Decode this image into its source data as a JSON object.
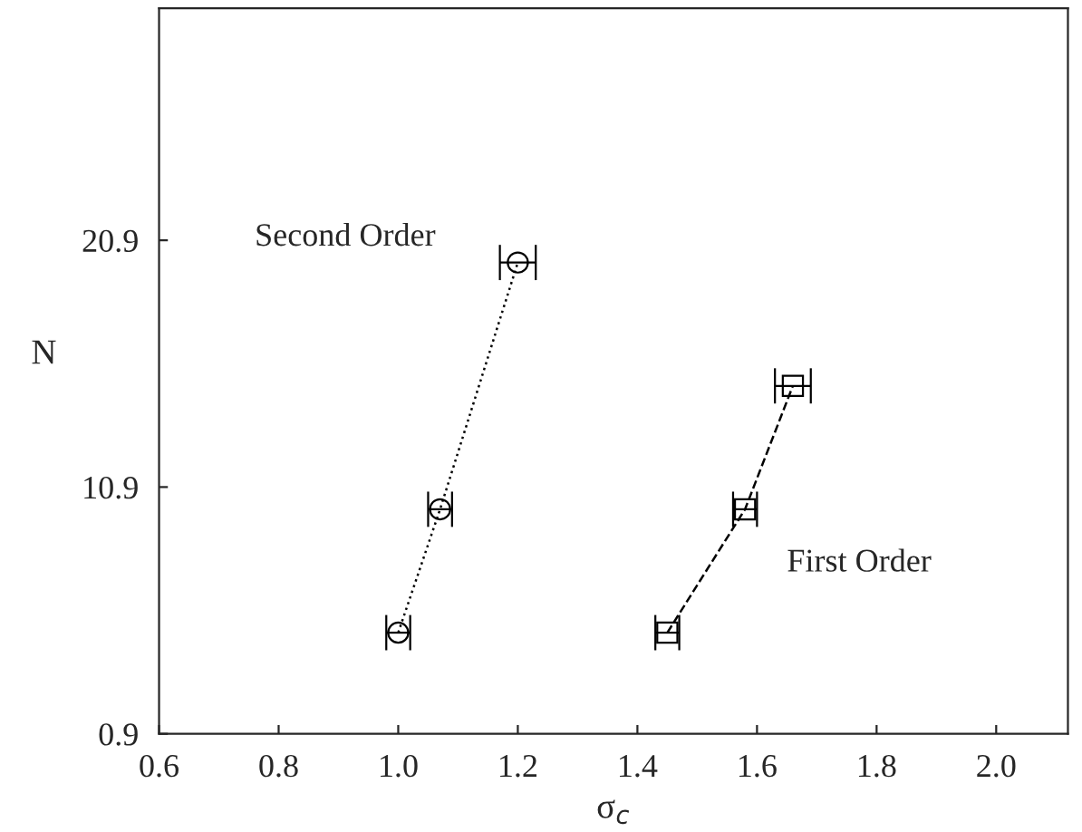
{
  "chart_data": {
    "type": "line",
    "xlabel": "σ$_{c}$",
    "ylabel": "N",
    "xlim": [
      0.6,
      2.12
    ],
    "xticks": [
      {
        "value": 0.6,
        "label": "0.6"
      },
      {
        "value": 0.8,
        "label": "0.8"
      },
      {
        "value": 1.0,
        "label": "1.0"
      },
      {
        "value": 1.2,
        "label": "1.2"
      },
      {
        "value": 1.4,
        "label": "1.4"
      },
      {
        "value": 1.6,
        "label": "1.6"
      },
      {
        "value": 1.8,
        "label": "1.8"
      },
      {
        "value": 2.0,
        "label": "2.0"
      }
    ],
    "ylim": [
      0.9,
      30.3
    ],
    "yticks": [
      0.9,
      10.9,
      20.9
    ],
    "grid": false,
    "legend": false,
    "series": [
      {
        "name": "Second Order",
        "color": "#000000",
        "marker": "circle",
        "line_style": "dotted",
        "x": [
          1.0,
          1.07,
          1.2
        ],
        "values": [
          5,
          10,
          20
        ],
        "xerrors": [
          0.02,
          0.02,
          0.03
        ]
      },
      {
        "name": "First Order",
        "color": "#000000",
        "marker": "square",
        "line_style": "dashed",
        "x": [
          1.45,
          1.58,
          1.66
        ],
        "values": [
          5,
          10,
          15
        ],
        "xerrors": [
          0.02,
          0.02,
          0.03
        ]
      }
    ]
  }
}
